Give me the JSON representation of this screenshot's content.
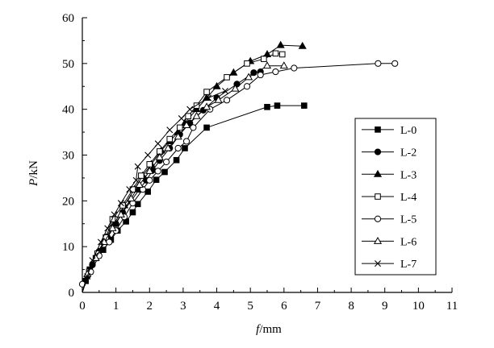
{
  "chart_data": {
    "type": "line",
    "xlabel": {
      "var": "f",
      "unit": "/mm"
    },
    "ylabel": {
      "var": "P",
      "unit": "/kN"
    },
    "xlim": [
      0,
      11
    ],
    "ylim": [
      0,
      60
    ],
    "x_ticks": [
      "0",
      "1",
      "2",
      "3",
      "4",
      "5",
      "6",
      "7",
      "8",
      "9",
      "10",
      "11"
    ],
    "y_ticks": [
      "0",
      "10",
      "20",
      "30",
      "40",
      "50",
      "60"
    ],
    "grid": false,
    "legend_position": "right",
    "series": [
      {
        "name": "L-0",
        "marker": "square-filled",
        "points": [
          [
            0,
            0
          ],
          [
            0.1,
            2.5
          ],
          [
            0.22,
            5
          ],
          [
            0.4,
            7.5
          ],
          [
            0.62,
            9.3
          ],
          [
            0.85,
            11.5
          ],
          [
            1.05,
            13.5
          ],
          [
            1.3,
            15.5
          ],
          [
            1.5,
            17.5
          ],
          [
            1.65,
            19.3
          ],
          [
            1.95,
            22
          ],
          [
            2.2,
            24.6
          ],
          [
            2.45,
            26.3
          ],
          [
            2.8,
            28.9
          ],
          [
            3.05,
            31.5
          ],
          [
            3.7,
            36
          ],
          [
            5.5,
            40.5
          ],
          [
            5.8,
            40.8
          ],
          [
            6.6,
            40.8
          ]
        ]
      },
      {
        "name": "L-2",
        "marker": "circle-filled",
        "points": [
          [
            0,
            0
          ],
          [
            0.15,
            3.5
          ],
          [
            0.3,
            6
          ],
          [
            0.5,
            9
          ],
          [
            0.75,
            12
          ],
          [
            1,
            15
          ],
          [
            1.2,
            17.5
          ],
          [
            1.45,
            20
          ],
          [
            1.7,
            22.5
          ],
          [
            1.9,
            24.5
          ],
          [
            2.1,
            26.7
          ],
          [
            2.3,
            28.8
          ],
          [
            2.6,
            31.5
          ],
          [
            2.9,
            34.5
          ],
          [
            3.2,
            37
          ],
          [
            3.6,
            39.8
          ],
          [
            4,
            42.5
          ],
          [
            4.6,
            45.5
          ],
          [
            5.1,
            48
          ],
          [
            5.3,
            48.2
          ]
        ]
      },
      {
        "name": "L-3",
        "marker": "triangle-filled",
        "points": [
          [
            0,
            0
          ],
          [
            0.2,
            4.5
          ],
          [
            0.45,
            8
          ],
          [
            0.7,
            12
          ],
          [
            0.95,
            15
          ],
          [
            1.25,
            19
          ],
          [
            1.55,
            22.5
          ],
          [
            1.8,
            25.5
          ],
          [
            2.05,
            28
          ],
          [
            2.35,
            31
          ],
          [
            2.6,
            33
          ],
          [
            2.85,
            35
          ],
          [
            3.05,
            37
          ],
          [
            3.4,
            40
          ],
          [
            3.7,
            42.5
          ],
          [
            4,
            45
          ],
          [
            4.5,
            48
          ],
          [
            5,
            50.5
          ],
          [
            5.5,
            52
          ],
          [
            5.9,
            54
          ],
          [
            6.55,
            53.8
          ]
        ]
      },
      {
        "name": "L-4",
        "marker": "square-open",
        "points": [
          [
            0,
            0
          ],
          [
            0.2,
            4.5
          ],
          [
            0.45,
            8.5
          ],
          [
            0.7,
            12
          ],
          [
            0.9,
            16
          ],
          [
            1.2,
            19
          ],
          [
            1.5,
            22.5
          ],
          [
            1.75,
            25.5
          ],
          [
            2,
            28
          ],
          [
            2.3,
            30.8
          ],
          [
            2.6,
            33.5
          ],
          [
            2.9,
            36
          ],
          [
            3.15,
            38.5
          ],
          [
            3.4,
            40.8
          ],
          [
            3.7,
            43.8
          ],
          [
            4.3,
            47
          ],
          [
            4.9,
            50
          ],
          [
            5.4,
            51
          ],
          [
            5.75,
            52.2
          ],
          [
            5.95,
            52
          ]
        ]
      },
      {
        "name": "L-5",
        "marker": "circle-open",
        "points": [
          [
            0,
            0
          ],
          [
            0,
            1.8
          ],
          [
            0.25,
            4.5
          ],
          [
            0.5,
            8
          ],
          [
            0.8,
            11
          ],
          [
            1,
            13.5
          ],
          [
            1.25,
            16.5
          ],
          [
            1.5,
            19.5
          ],
          [
            1.8,
            22.5
          ],
          [
            2,
            24.5
          ],
          [
            2.25,
            26.5
          ],
          [
            2.5,
            28.5
          ],
          [
            2.85,
            31.5
          ],
          [
            3.1,
            33
          ],
          [
            3.3,
            36
          ],
          [
            3.8,
            40
          ],
          [
            4.3,
            42
          ],
          [
            4.9,
            45
          ],
          [
            5.3,
            47.5
          ],
          [
            5.75,
            48.2
          ],
          [
            6.3,
            49
          ],
          [
            8.8,
            50
          ],
          [
            9.3,
            50
          ]
        ]
      },
      {
        "name": "L-6",
        "marker": "triangle-open",
        "points": [
          [
            0,
            0
          ],
          [
            0.15,
            4
          ],
          [
            0.4,
            7.5
          ],
          [
            0.65,
            11
          ],
          [
            0.9,
            14
          ],
          [
            1.15,
            17
          ],
          [
            1.45,
            20.5
          ],
          [
            1.7,
            23.5
          ],
          [
            2,
            26.5
          ],
          [
            2.3,
            29.5
          ],
          [
            2.55,
            31.5
          ],
          [
            2.85,
            34
          ],
          [
            3.1,
            36.5
          ],
          [
            3.4,
            38.5
          ],
          [
            3.7,
            40.5
          ],
          [
            4.05,
            42
          ],
          [
            4.55,
            44.5
          ],
          [
            4.95,
            47
          ],
          [
            5.5,
            49.5
          ],
          [
            6,
            49.5
          ]
        ]
      },
      {
        "name": "L-7",
        "marker": "x",
        "points": [
          [
            0,
            0
          ],
          [
            0.15,
            3.5
          ],
          [
            0.3,
            7
          ],
          [
            0.55,
            11
          ],
          [
            0.75,
            14
          ],
          [
            0.95,
            17
          ],
          [
            1.15,
            19.5
          ],
          [
            1.4,
            22.5
          ],
          [
            1.6,
            24.5
          ],
          [
            1.65,
            27.5
          ],
          [
            1.95,
            30
          ],
          [
            2.25,
            32.5
          ],
          [
            2.6,
            35.5
          ],
          [
            2.95,
            38
          ],
          [
            3.2,
            40
          ],
          [
            3.75,
            42.5
          ],
          [
            4.25,
            44
          ]
        ]
      }
    ]
  }
}
